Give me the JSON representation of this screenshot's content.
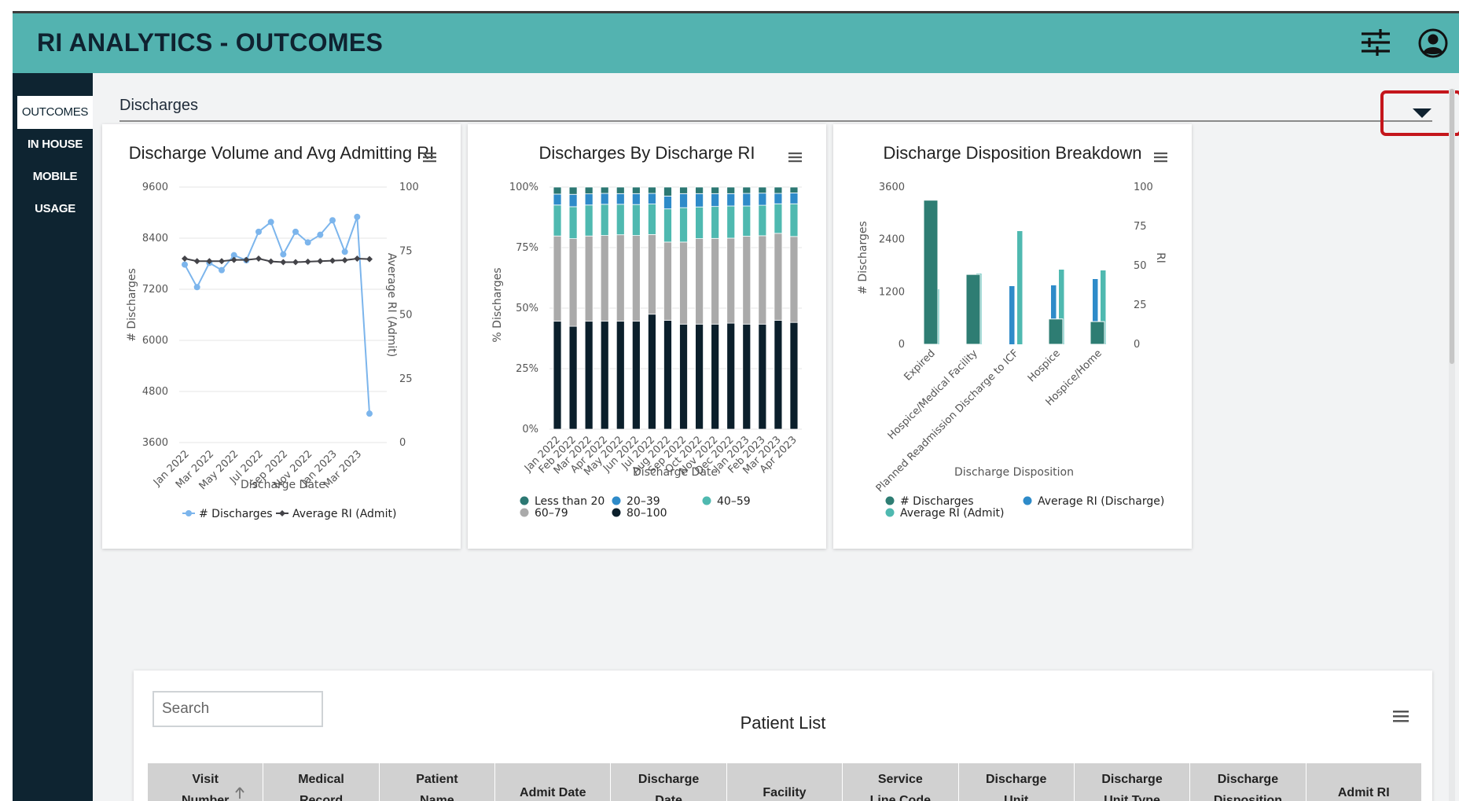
{
  "app": {
    "title": "RI ANALYTICS - OUTCOMES"
  },
  "sidebar": {
    "items": [
      {
        "label": "OUTCOMES",
        "active": true
      },
      {
        "label": "IN HOUSE",
        "active": false
      },
      {
        "label": "MOBILE",
        "active": false
      },
      {
        "label": "USAGE",
        "active": false
      }
    ]
  },
  "section": {
    "title": "Discharges"
  },
  "icons": {
    "filters": "sliders-icon",
    "account": "user-circle-icon",
    "toggle": "caret-down-icon",
    "menu": "hamburger-icon",
    "sort": "arrow-up-icon"
  },
  "colors": {
    "header": "#53b3b0",
    "sidebar": "#0e2431",
    "highlight": "#c4161c"
  },
  "chart_data": [
    {
      "type": "line",
      "title": "Discharge Volume and Avg Admitting RI",
      "xlabel": "Discharge Date",
      "ylabel": "# Discharges",
      "y2label": "Average RI (Admit)",
      "x": [
        "Jan 2022",
        "Feb 2022",
        "Mar 2022",
        "Apr 2022",
        "May 2022",
        "Jun 2022",
        "Jul 2022",
        "Aug 2022",
        "Sep 2022",
        "Oct 2022",
        "Nov 2022",
        "Dec 2022",
        "Jan 2023",
        "Feb 2023",
        "Mar 2023",
        "Apr 2023"
      ],
      "x_tick_labels": [
        "Jan 2022",
        "Mar 2022",
        "May 2022",
        "Jul 2022",
        "Sep 2022",
        "Nov 2022",
        "Jan 2023",
        "Mar 2023"
      ],
      "ylim": [
        3600,
        9600
      ],
      "y_ticks": [
        "9600",
        "8400",
        "7200",
        "6000",
        "4800",
        "3600"
      ],
      "y2lim": [
        0,
        100
      ],
      "y2_ticks": [
        "100",
        "75",
        "50",
        "25",
        "0"
      ],
      "series": [
        {
          "name": "# Discharges",
          "axis": "left",
          "color": "#7cb5ec",
          "values": [
            7780,
            7250,
            7820,
            7650,
            8000,
            7880,
            8550,
            8780,
            8020,
            8550,
            8300,
            8480,
            8820,
            8080,
            8900,
            4280
          ]
        },
        {
          "name": "Average RI (Admit)",
          "axis": "right",
          "color": "#434348",
          "values": [
            72,
            71,
            71,
            71,
            71.5,
            71.5,
            72,
            70.9,
            70.6,
            70.6,
            70.8,
            71,
            71.2,
            71.4,
            72,
            71.8
          ]
        }
      ],
      "legend": "bottom"
    },
    {
      "type": "bar",
      "stacked": "percent",
      "title": "Discharges By Discharge RI",
      "xlabel": "Discharge Date",
      "ylabel": "% Discharges",
      "categories": [
        "Jan 2022",
        "Feb 2022",
        "Mar 2022",
        "Apr 2022",
        "May 2022",
        "Jun 2022",
        "Jul 2022",
        "Aug 2022",
        "Sep 2022",
        "Oct 2022",
        "Nov 2022",
        "Dec 2022",
        "Jan 2023",
        "Feb 2023",
        "Mar 2023",
        "Apr 2023"
      ],
      "y_ticks": [
        "100%",
        "75%",
        "50%",
        "25%",
        "0%"
      ],
      "series": [
        {
          "name": "80–100",
          "color": "#0b1f2b",
          "values": [
            44.6,
            42.5,
            44.6,
            44.6,
            44.6,
            44.6,
            47.5,
            45,
            43.4,
            43.4,
            43.4,
            43.8,
            43.4,
            43.4,
            45,
            44.1
          ]
        },
        {
          "name": "60–79",
          "color": "#aaaaaa",
          "values": [
            35.2,
            36.2,
            35.2,
            35.4,
            35.7,
            35.4,
            32.9,
            32.3,
            33.9,
            35.3,
            35.4,
            35.1,
            36.3,
            36.5,
            35.9,
            35.5
          ]
        },
        {
          "name": "40–59",
          "color": "#4fb9b0",
          "values": [
            12.8,
            13.2,
            12.8,
            12.9,
            12.6,
            12.8,
            12.6,
            13.7,
            14.2,
            13.1,
            13.2,
            13.3,
            12.5,
            12.6,
            12.2,
            13.5
          ]
        },
        {
          "name": "20–39",
          "color": "#2e8bc9",
          "values": [
            4.5,
            5.1,
            4.6,
            4.5,
            4.4,
            4.5,
            4.4,
            5.3,
            5.8,
            5.5,
            5.3,
            5.1,
            5.2,
            5,
            4.3,
            4.5
          ]
        },
        {
          "name": "Less than 20",
          "color": "#2c7873",
          "values": [
            2.9,
            3,
            2.8,
            2.6,
            2.7,
            2.7,
            2.6,
            3.7,
            2.7,
            2.7,
            2.7,
            2.7,
            2.6,
            2.5,
            2.6,
            2.4
          ]
        }
      ],
      "legend_order": [
        "Less than 20",
        "20–39",
        "40–59",
        "60–79",
        "80–100"
      ],
      "legend": "bottom"
    },
    {
      "type": "bar",
      "title": "Discharge Disposition Breakdown",
      "xlabel": "Discharge Disposition",
      "ylabel": "# Discharges",
      "y2label": "RI",
      "categories": [
        "Expired",
        "Hospice/Medical Facility",
        "Planned Readmission Discharge to ICF",
        "Hospice",
        "Hospice/Home"
      ],
      "ylim": [
        0,
        3600
      ],
      "y_ticks": [
        "3600",
        "2400",
        "1200",
        "0"
      ],
      "y2lim": [
        0,
        100
      ],
      "y2_ticks": [
        "100",
        "75",
        "50",
        "25",
        "0"
      ],
      "series": [
        {
          "name": "# Discharges",
          "axis": "left",
          "color": "#2e7d73",
          "values": [
            3300,
            1600,
            0,
            580,
            520
          ]
        },
        {
          "name": "Average RI (Discharge)",
          "axis": "right",
          "color": "#2e8bc9",
          "values": [
            6,
            35,
            37,
            37.5,
            41.5
          ]
        },
        {
          "name": "Average RI (Admit)",
          "axis": "right",
          "color": "#4fb9b0",
          "values": [
            35,
            45,
            72,
            47.5,
            47
          ]
        }
      ],
      "legend": "bottom"
    }
  ],
  "table": {
    "search_placeholder": "Search",
    "title": "Patient List",
    "columns": [
      {
        "l1": "Visit",
        "l2": "Number",
        "sort": true
      },
      {
        "l1": "Medical",
        "l2": "Record",
        "sort": false
      },
      {
        "l1": "Patient",
        "l2": "Name",
        "sort": false
      },
      {
        "l1": "Admit Date",
        "l2": "",
        "sort": false
      },
      {
        "l1": "Discharge",
        "l2": "Date",
        "sort": false
      },
      {
        "l1": "Facility",
        "l2": "",
        "sort": false
      },
      {
        "l1": "Service",
        "l2": "Line Code",
        "sort": false
      },
      {
        "l1": "Discharge",
        "l2": "Unit",
        "sort": false
      },
      {
        "l1": "Discharge",
        "l2": "Unit Type",
        "sort": false
      },
      {
        "l1": "Discharge",
        "l2": "Disposition",
        "sort": false
      },
      {
        "l1": "Admit RI",
        "l2": "",
        "sort": false
      }
    ]
  }
}
